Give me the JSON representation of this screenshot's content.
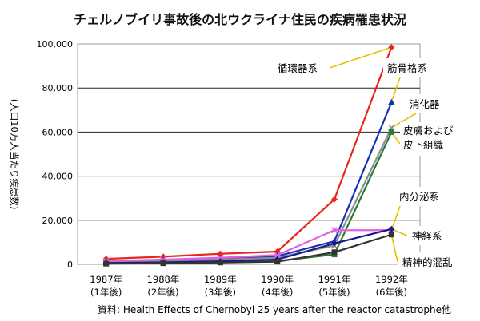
{
  "chart_data": {
    "type": "line",
    "title": "チェルノブイリ事故後の北ウクライナ住民の疾病罹患状況",
    "ylabel": "(人口10万人当たり疾患数)",
    "source": "資料: Health Effects of Chernobyl 25 years after the reactor catastrophe他",
    "ylim": [
      0,
      100000
    ],
    "yticks": [
      "0",
      "20,000",
      "40,000",
      "60,000",
      "80,000",
      "100,000"
    ],
    "ytick_values": [
      0,
      20000,
      40000,
      60000,
      80000,
      100000
    ],
    "categories": [
      {
        "year": "1987年",
        "sub": "(1年後)"
      },
      {
        "year": "1988年",
        "sub": "(2年後)"
      },
      {
        "year": "1989年",
        "sub": "(3年後)"
      },
      {
        "year": "1990年",
        "sub": "(4年後)"
      },
      {
        "year": "1991年",
        "sub": "(5年後)"
      },
      {
        "year": "1992年",
        "sub": "(6年後)"
      }
    ],
    "grid": true,
    "series": [
      {
        "name": "循環器系",
        "color": "#e8261c",
        "marker": "diamond",
        "values": [
          2500,
          3500,
          4800,
          5800,
          29500,
          98500
        ]
      },
      {
        "name": "筋骨格系",
        "color": "#1432b4",
        "marker": "triangle",
        "values": [
          1200,
          1800,
          2600,
          3700,
          10500,
          73500
        ]
      },
      {
        "name": "消化器",
        "color": "#8c8c8c",
        "marker": "x",
        "values": [
          1000,
          1500,
          2200,
          3000,
          8500,
          62000
        ]
      },
      {
        "name": "皮膚および皮下組織",
        "color": "#2a7a3a",
        "marker": "square",
        "values": [
          400,
          700,
          1100,
          1500,
          4500,
          60000
        ]
      },
      {
        "name": "内分泌系",
        "color": "#e060e0",
        "marker": "x",
        "values": [
          1500,
          2200,
          3000,
          4200,
          15500,
          15500
        ]
      },
      {
        "name": "神経系",
        "color": "#1a1a8c",
        "marker": "diamond",
        "values": [
          600,
          900,
          1400,
          2200,
          9500,
          16000
        ]
      },
      {
        "name": "精神的混乱",
        "color": "#333333",
        "marker": "square",
        "values": [
          300,
          500,
          800,
          1200,
          5500,
          13500
        ]
      }
    ],
    "annotations": [
      {
        "lines": [
          "循環器系"
        ],
        "series": 0
      },
      {
        "lines": [
          "筋骨格系"
        ],
        "series": 1
      },
      {
        "lines": [
          "消化器"
        ],
        "series": 2
      },
      {
        "lines": [
          "皮膚および",
          "皮下組織"
        ],
        "series": 3
      },
      {
        "lines": [
          "内分泌系"
        ],
        "series": 4
      },
      {
        "lines": [
          "神経系"
        ],
        "series": 5
      },
      {
        "lines": [
          "精神的混乱"
        ],
        "series": 6
      }
    ]
  }
}
